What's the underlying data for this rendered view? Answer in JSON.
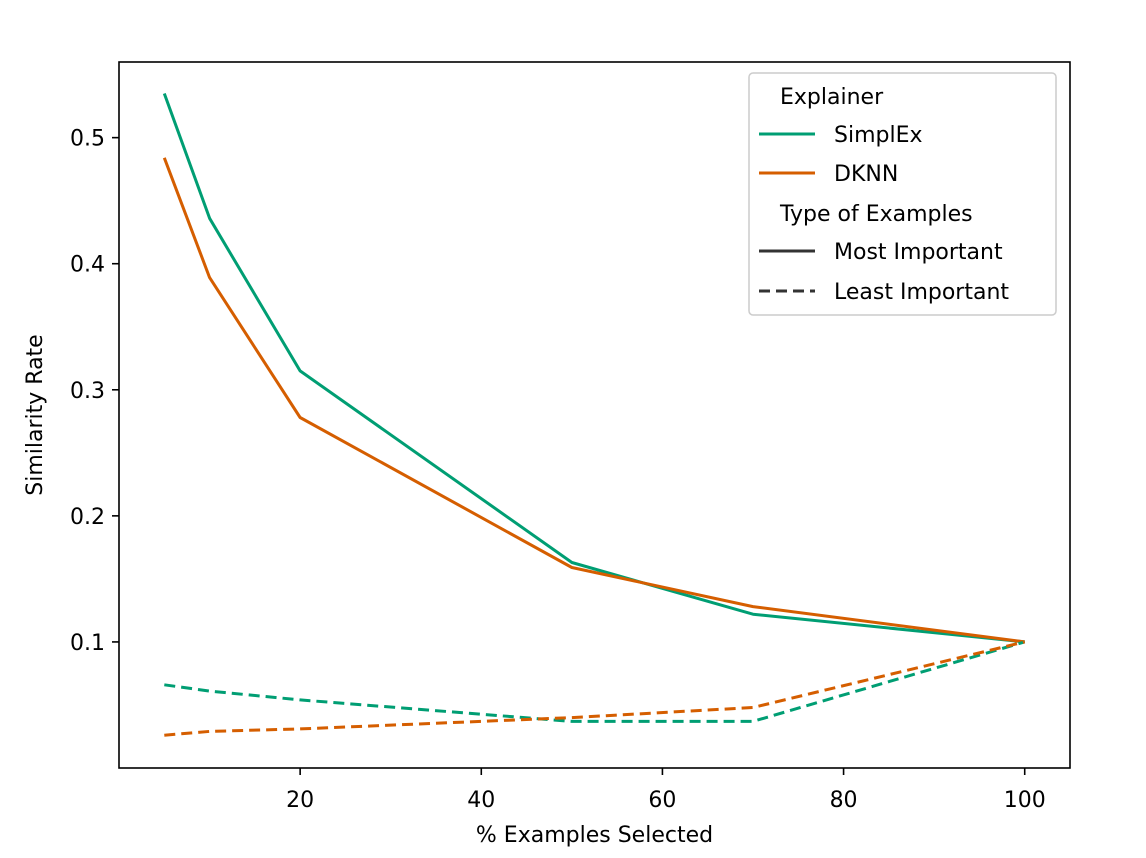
{
  "chart_data": {
    "type": "line",
    "title": "",
    "xlabel": "% Examples Selected",
    "ylabel": "Similarity Rate",
    "xlim": [
      0,
      105
    ],
    "ylim": [
      0,
      0.56
    ],
    "xticks": [
      20,
      40,
      60,
      80,
      100
    ],
    "yticks": [
      0.1,
      0.2,
      0.3,
      0.4,
      0.5
    ],
    "xtick_labels": [
      "20",
      "40",
      "60",
      "80",
      "100"
    ],
    "ytick_labels": [
      "0.1",
      "0.2",
      "0.3",
      "0.4",
      "0.5"
    ],
    "grid": false,
    "legend_position": "top-right",
    "x": [
      5,
      10,
      20,
      50,
      70,
      100
    ],
    "series": [
      {
        "name": "SimplEx",
        "type_of_examples": "Most Important",
        "color": "#009e73",
        "dash": "solid",
        "values": [
          0.535,
          0.436,
          0.315,
          0.163,
          0.122,
          0.1
        ]
      },
      {
        "name": "DKNN",
        "type_of_examples": "Most Important",
        "color": "#d55e00",
        "dash": "solid",
        "values": [
          0.484,
          0.389,
          0.278,
          0.159,
          0.128,
          0.1
        ]
      },
      {
        "name": "SimplEx",
        "type_of_examples": "Least Important",
        "color": "#009e73",
        "dash": "dashed",
        "values": [
          0.066,
          0.061,
          0.054,
          0.037,
          0.037,
          0.1
        ]
      },
      {
        "name": "DKNN",
        "type_of_examples": "Least Important",
        "color": "#d55e00",
        "dash": "dashed",
        "values": [
          0.026,
          0.029,
          0.031,
          0.04,
          0.048,
          0.1
        ]
      }
    ],
    "legend": {
      "explainer_title": "Explainer",
      "explainer_entries": [
        {
          "label": "SimplEx",
          "color": "#009e73"
        },
        {
          "label": "DKNN",
          "color": "#d55e00"
        }
      ],
      "type_title": "Type of Examples",
      "type_entries": [
        {
          "label": "Most Important",
          "color": "#333333",
          "dash": "solid"
        },
        {
          "label": "Least Important",
          "color": "#333333",
          "dash": "dashed"
        }
      ]
    }
  }
}
